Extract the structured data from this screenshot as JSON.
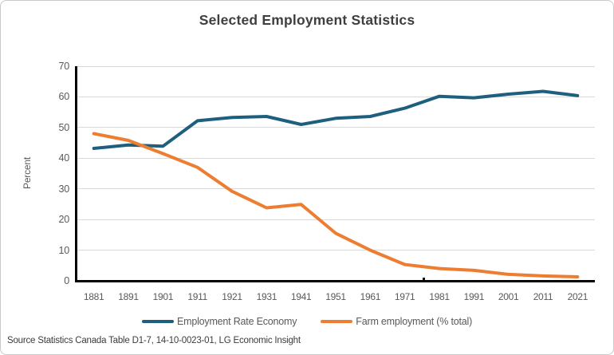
{
  "title": "Selected Employment Statistics",
  "source_note": "Source Statistics Canada Table D1-7, 14-10-0023-01, LG Economic Insight",
  "colors": {
    "employment_rate_line": "#1f5f7e",
    "farm_employment_line": "#ed7d31",
    "gridline": "#d9d9d9",
    "axis": "#000000",
    "tick_text": "#595959",
    "title_text": "#3f3f3f"
  },
  "chart_data": {
    "type": "line",
    "title": "Selected Employment Statistics",
    "xlabel": "",
    "ylabel": "Percent",
    "ylim": [
      0,
      70
    ],
    "yticks": [
      0,
      10,
      20,
      30,
      40,
      50,
      60,
      70
    ],
    "grid": "horizontal",
    "legend_position": "bottom",
    "x": [
      "1881",
      "1891",
      "1901",
      "1911",
      "1921",
      "1931",
      "1941",
      "1951",
      "1961",
      "1971",
      "1981",
      "1991",
      "2001",
      "2011",
      "2021"
    ],
    "series": [
      {
        "name": "Employment Rate Economy",
        "color": "#1f5f7e",
        "values": [
          43.2,
          44.3,
          43.9,
          52.2,
          53.3,
          53.6,
          51.0,
          53.0,
          53.6,
          56.3,
          60.2,
          59.7,
          60.9,
          61.8,
          60.4
        ]
      },
      {
        "name": "Farm employment (% total)",
        "color": "#ed7d31",
        "values": [
          48.0,
          45.8,
          41.5,
          37.0,
          29.2,
          23.8,
          24.9,
          15.5,
          10.0,
          5.3,
          4.0,
          3.4,
          2.1,
          1.6,
          1.3
        ]
      }
    ]
  }
}
